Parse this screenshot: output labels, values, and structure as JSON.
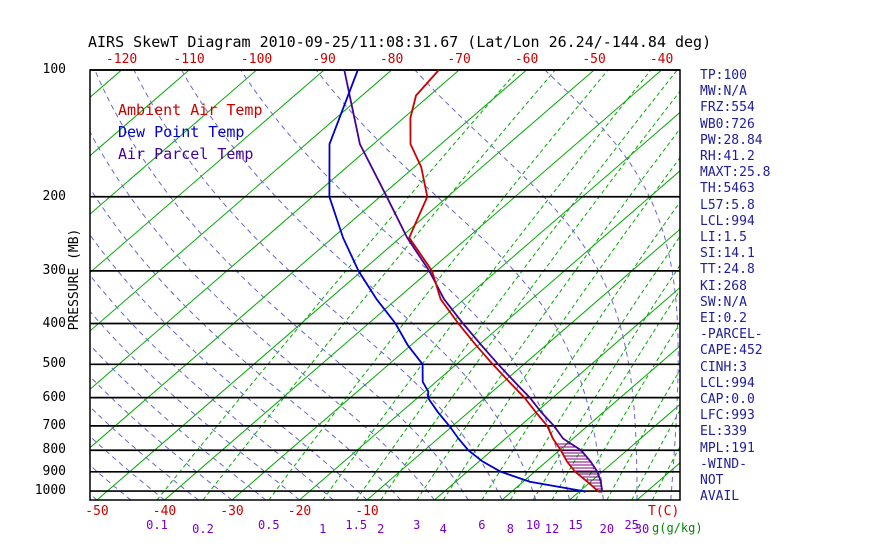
{
  "title": "AIRS SkewT Diagram 2010-09-25/11:08:31.67 (Lat/Lon 26.24/-144.84 deg)",
  "legend": {
    "ambient": "Ambient Air Temp",
    "dew": "Dew Point Temp",
    "parcel": "Air Parcel Temp"
  },
  "axes": {
    "pressure_label": "PRESSURE (MB)",
    "pressure_ticks": [
      100,
      200,
      300,
      400,
      500,
      600,
      700,
      800,
      900,
      1000
    ],
    "top_temp_ticks": [
      -120,
      -110,
      -100,
      -90,
      -80,
      -70,
      -60,
      -50,
      -40
    ],
    "bottom_temp_ticks": [
      -50,
      -40,
      -30,
      -20,
      -10
    ],
    "temp_unit_label": "T(C)",
    "mixing_ratio_values": [
      0.1,
      0.2,
      0.5,
      1,
      1.5,
      2,
      3,
      4,
      6,
      8,
      10,
      12,
      15,
      20,
      25,
      30
    ],
    "mixing_unit_label": "g(g/kg)"
  },
  "stats": [
    "TP:100",
    "MW:N/A",
    "FRZ:554",
    "WB0:726",
    "PW:28.84",
    "RH:41.2",
    "MAXT:25.8",
    "TH:5463",
    "L57:5.8",
    "LCL:994",
    "LI:1.5",
    "SI:14.1",
    "TT:24.8",
    "KI:268",
    "SW:N/A",
    "EI:0.2",
    "-PARCEL-",
    "CAPE:452",
    "CINH:3",
    "LCL:994",
    "CAP:0.0",
    "LFC:993",
    "EL:339",
    "MPL:191",
    "-WIND-",
    "NOT",
    "AVAIL"
  ],
  "colors": {
    "isotherm": "#00aa00",
    "mixing_ratio": "#00aa00",
    "moist_adiabat": "#6666cc",
    "ambient_temp": "#cc0000",
    "dew_point": "#0000cc",
    "air_parcel": "#440099",
    "cape_hatch": "#800080",
    "axis_black": "#000000",
    "axis_red": "#cc0000",
    "mixing_label": "#7700cc",
    "mixing_unit": "#008800",
    "stats_text": "#202099",
    "pressure_text": "#000000"
  },
  "chart_data": {
    "type": "line",
    "title": "AIRS SkewT Diagram 2010-09-25/11:08:31.67 (Lat/Lon 26.24/-144.84 deg)",
    "x_axis_label": "T(C)",
    "y_axis_label": "PRESSURE (MB)",
    "y_scale": "log",
    "pressure_range_mb": [
      100,
      1050
    ],
    "top_axis_temp_ticks_c": [
      -120,
      -110,
      -100,
      -90,
      -80,
      -70,
      -60,
      -50,
      -40
    ],
    "bottom_axis_temp_ticks_c": [
      -50,
      -40,
      -30,
      -20,
      -10
    ],
    "isotherms_c": {
      "min": -130,
      "max": 40,
      "step": 10
    },
    "mixing_ratio_lines_g_kg": [
      0.1,
      0.2,
      0.5,
      1,
      1.5,
      2,
      3,
      4,
      6,
      8,
      10,
      12,
      15,
      20,
      25,
      30
    ],
    "moist_adiabat_start_temps_c": {
      "min": -55,
      "max": 40,
      "step": 5
    },
    "cape_hatch_pressure_range_mb": [
      770,
      1005
    ],
    "series": [
      {
        "name": "Ambient Air Temp",
        "pressure_mb": [
          1005,
          1000,
          950,
          900,
          850,
          800,
          750,
          700,
          650,
          600,
          550,
          500,
          450,
          400,
          350,
          300,
          250,
          200,
          170,
          150,
          130,
          115,
          100
        ],
        "temp_c": [
          23,
          22.7,
          19.5,
          16,
          13,
          10.2,
          7,
          4,
          0,
          -4.2,
          -9.2,
          -14.6,
          -20.4,
          -26.7,
          -33.5,
          -39.6,
          -48.7,
          -53,
          -59,
          -64.5,
          -69,
          -72,
          -73
        ]
      },
      {
        "name": "Dew Point Temp",
        "pressure_mb": [
          1005,
          1000,
          950,
          900,
          850,
          800,
          750,
          700,
          650,
          600,
          580,
          550,
          500,
          450,
          400,
          350,
          300,
          250,
          200,
          150,
          100
        ],
        "temp_c": [
          21,
          20.5,
          11,
          5,
          0.5,
          -3.5,
          -7,
          -10.5,
          -14.5,
          -18.5,
          -19.5,
          -22,
          -25,
          -30.5,
          -36,
          -43,
          -50.5,
          -58.5,
          -67.5,
          -76.5,
          -85
        ]
      },
      {
        "name": "Air Parcel Temp",
        "pressure_mb": [
          1005,
          1000,
          950,
          900,
          850,
          800,
          750,
          700,
          650,
          600,
          550,
          500,
          450,
          400,
          350,
          300,
          250,
          200,
          150,
          100
        ],
        "temp_c": [
          23.5,
          23.3,
          21.5,
          19.3,
          16.5,
          13.2,
          8.5,
          5,
          0.8,
          -3.4,
          -8.4,
          -13.8,
          -19.6,
          -26,
          -33,
          -40,
          -49,
          -59,
          -72,
          -87
        ]
      }
    ]
  }
}
